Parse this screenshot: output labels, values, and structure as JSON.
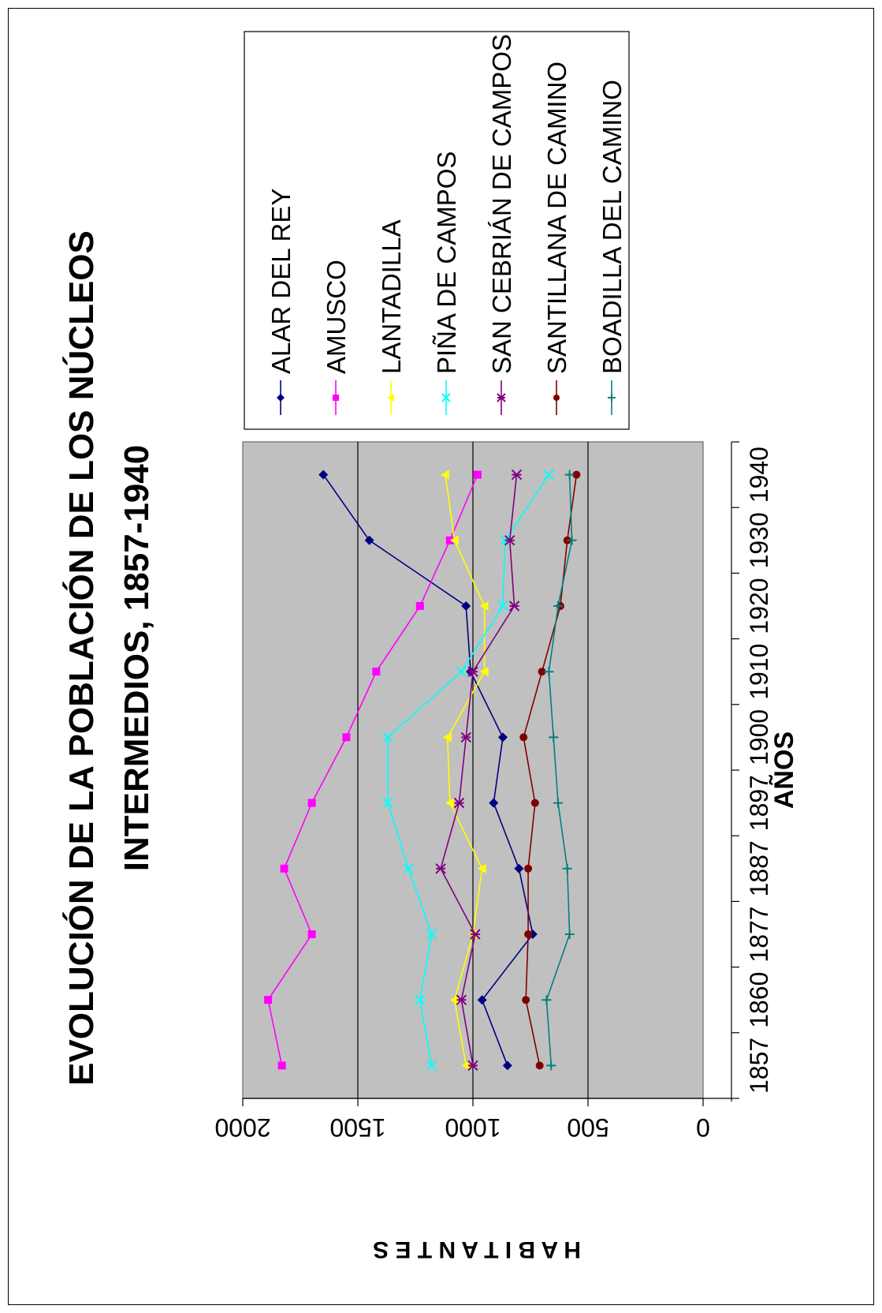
{
  "chart_data": {
    "type": "line",
    "title_line1": "EVOLUCIÓN DE LA POBLACIÓN DE LOS NÚCLEOS",
    "title_line2": "INTERMEDIOS, 1857-1940",
    "xlabel": "AÑOS",
    "ylabel": "H A B I T A N T E S",
    "categories": [
      "1857",
      "1860",
      "1877",
      "1887",
      "1897",
      "1900",
      "1910",
      "1920",
      "1930",
      "1940"
    ],
    "ylim": [
      0,
      2000
    ],
    "yticks": [
      "0",
      "500",
      "1000",
      "1500",
      "2000"
    ],
    "grid": true,
    "legend_position": "right",
    "series": [
      {
        "name": "ALAR DEL REY",
        "color": "#000080",
        "marker": "diamond",
        "values": [
          850,
          960,
          740,
          800,
          910,
          870,
          1010,
          1030,
          1450,
          1650
        ]
      },
      {
        "name": "AMUSCO",
        "color": "#ff00ff",
        "marker": "square",
        "values": [
          1830,
          1890,
          1700,
          1820,
          1700,
          1550,
          1420,
          1230,
          1100,
          980
        ]
      },
      {
        "name": "LANTADILLA",
        "color": "#ffff00",
        "marker": "triangle",
        "values": [
          1030,
          1080,
          1000,
          960,
          1100,
          1110,
          950,
          950,
          1080,
          1120
        ]
      },
      {
        "name": "PIÑA DE CAMPOS",
        "color": "#00ffff",
        "marker": "x",
        "values": [
          1180,
          1230,
          1180,
          1280,
          1370,
          1370,
          1050,
          870,
          860,
          670
        ]
      },
      {
        "name": "SAN CEBRIÁN DE CAMPOS",
        "color": "#800080",
        "marker": "star",
        "values": [
          1000,
          1050,
          990,
          1140,
          1060,
          1030,
          1000,
          820,
          840,
          810
        ]
      },
      {
        "name": "SANTILLANA DE CAMINO",
        "color": "#800000",
        "marker": "circle",
        "values": [
          710,
          770,
          760,
          760,
          730,
          780,
          700,
          620,
          590,
          550
        ]
      },
      {
        "name": "BOADILLA DEL CAMINO",
        "color": "#008080",
        "marker": "plus",
        "values": [
          660,
          680,
          580,
          590,
          630,
          650,
          670,
          630,
          570,
          580
        ]
      }
    ]
  }
}
